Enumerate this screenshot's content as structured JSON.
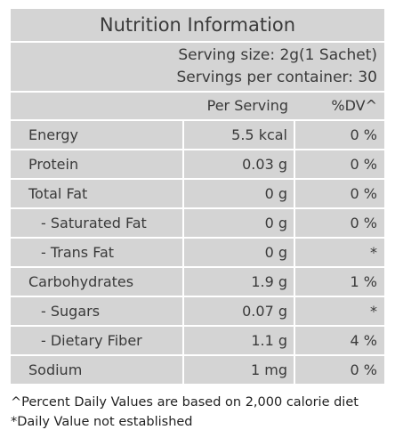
{
  "title": "Nutrition Information",
  "serving_size": "Serving size: 2g(1 Sachet)",
  "servings_per_container": "Servings per container: 30",
  "columns": {
    "per_serving": "Per Serving",
    "dv": "%DV^"
  },
  "rows": [
    {
      "name": "Energy",
      "value": "5.5 kcal",
      "dv": "0 %"
    },
    {
      "name": "Protein",
      "value": "0.03 g",
      "dv": "0 %"
    },
    {
      "name": "Total Fat",
      "value": "0 g",
      "dv": "0 %"
    },
    {
      "name": "- Saturated Fat",
      "value": "0 g",
      "dv": "0 %"
    },
    {
      "name": "- Trans Fat",
      "value": "0 g",
      "dv": "*"
    },
    {
      "name": "Carbohydrates",
      "value": "1.9 g",
      "dv": "1 %"
    },
    {
      "name": "- Sugars",
      "value": "0.07 g",
      "dv": "*"
    },
    {
      "name": "- Dietary Fiber",
      "value": "1.1 g",
      "dv": "4 %"
    },
    {
      "name": "Sodium",
      "value": "1 mg",
      "dv": "0 %"
    }
  ],
  "footnotes": [
    "^Percent Daily Values are based on 2,000 calorie diet",
    "*Daily Value not established"
  ]
}
